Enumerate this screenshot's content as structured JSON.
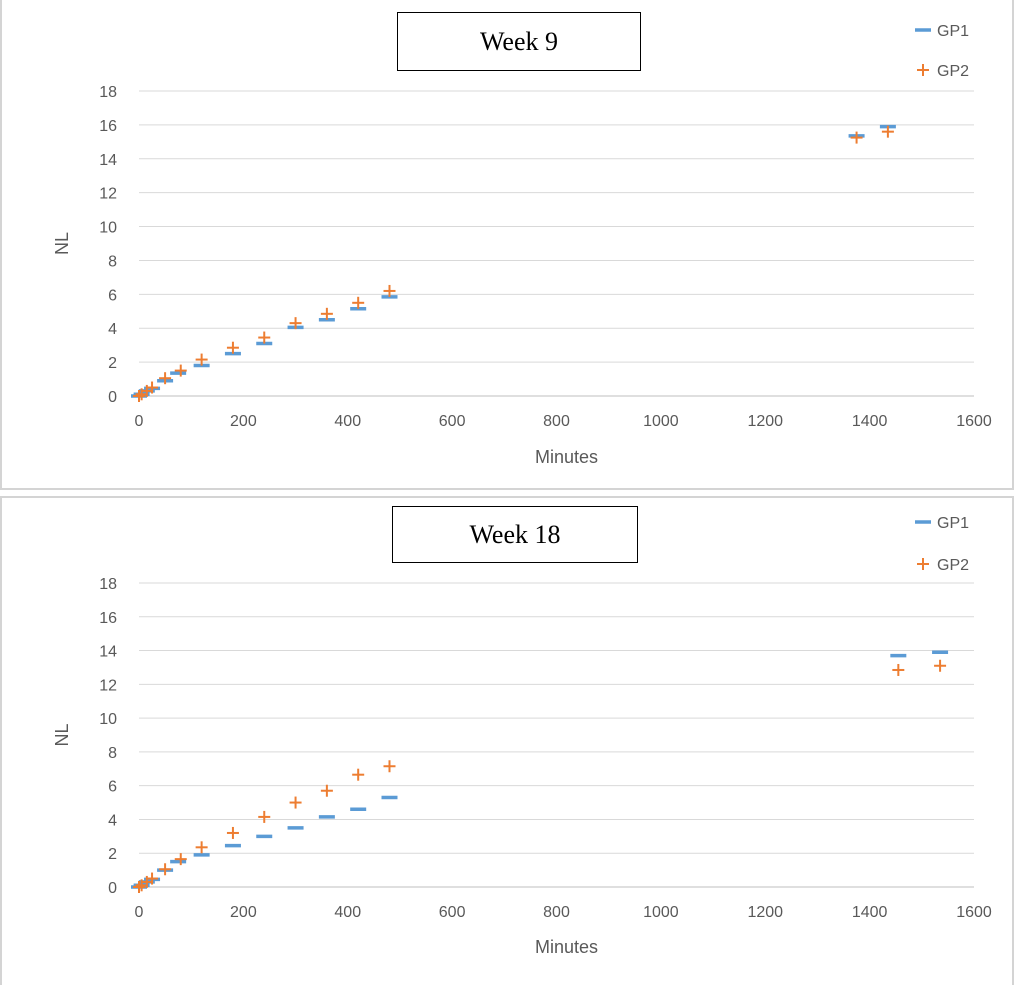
{
  "chart_data": [
    {
      "type": "scatter",
      "title": "Week 9",
      "xlabel": "Minutes",
      "ylabel": "NL",
      "xlim": [
        0,
        1600
      ],
      "ylim": [
        0,
        18
      ],
      "xticks": [
        0,
        200,
        400,
        600,
        800,
        1000,
        1200,
        1400,
        1600
      ],
      "yticks": [
        0,
        2,
        4,
        6,
        8,
        10,
        12,
        14,
        16,
        18
      ],
      "grid": true,
      "legend_position": "top-right",
      "series": [
        {
          "name": "GP1",
          "marker": "dash",
          "color": "#5b9bd5",
          "points": [
            {
              "x": 0,
              "y": 0
            },
            {
              "x": 5,
              "y": 0.1
            },
            {
              "x": 15,
              "y": 0.3
            },
            {
              "x": 25,
              "y": 0.45
            },
            {
              "x": 50,
              "y": 0.9
            },
            {
              "x": 75,
              "y": 1.35
            },
            {
              "x": 120,
              "y": 1.8
            },
            {
              "x": 180,
              "y": 2.5
            },
            {
              "x": 240,
              "y": 3.1
            },
            {
              "x": 300,
              "y": 4.05
            },
            {
              "x": 360,
              "y": 4.5
            },
            {
              "x": 420,
              "y": 5.15
            },
            {
              "x": 480,
              "y": 5.85
            },
            {
              "x": 1375,
              "y": 15.35
            },
            {
              "x": 1435,
              "y": 15.9
            }
          ]
        },
        {
          "name": "GP2",
          "marker": "plus",
          "color": "#ed7d31",
          "points": [
            {
              "x": 0,
              "y": 0
            },
            {
              "x": 5,
              "y": 0.1
            },
            {
              "x": 15,
              "y": 0.3
            },
            {
              "x": 25,
              "y": 0.5
            },
            {
              "x": 50,
              "y": 1.05
            },
            {
              "x": 80,
              "y": 1.5
            },
            {
              "x": 120,
              "y": 2.15
            },
            {
              "x": 180,
              "y": 2.85
            },
            {
              "x": 240,
              "y": 3.45
            },
            {
              "x": 300,
              "y": 4.3
            },
            {
              "x": 360,
              "y": 4.85
            },
            {
              "x": 420,
              "y": 5.5
            },
            {
              "x": 480,
              "y": 6.2
            },
            {
              "x": 1375,
              "y": 15.25
            },
            {
              "x": 1435,
              "y": 15.6
            }
          ]
        }
      ]
    },
    {
      "type": "scatter",
      "title": "Week 18",
      "xlabel": "Minutes",
      "ylabel": "NL",
      "xlim": [
        0,
        1600
      ],
      "ylim": [
        0,
        18
      ],
      "xticks": [
        0,
        200,
        400,
        600,
        800,
        1000,
        1200,
        1400,
        1600
      ],
      "yticks": [
        0,
        2,
        4,
        6,
        8,
        10,
        12,
        14,
        16,
        18
      ],
      "grid": true,
      "legend_position": "top-right",
      "series": [
        {
          "name": "GP1",
          "marker": "dash",
          "color": "#5b9bd5",
          "points": [
            {
              "x": 0,
              "y": 0
            },
            {
              "x": 5,
              "y": 0.1
            },
            {
              "x": 15,
              "y": 0.3
            },
            {
              "x": 25,
              "y": 0.45
            },
            {
              "x": 50,
              "y": 1.0
            },
            {
              "x": 75,
              "y": 1.5
            },
            {
              "x": 120,
              "y": 1.9
            },
            {
              "x": 180,
              "y": 2.45
            },
            {
              "x": 240,
              "y": 3.0
            },
            {
              "x": 300,
              "y": 3.5
            },
            {
              "x": 360,
              "y": 4.15
            },
            {
              "x": 420,
              "y": 4.6
            },
            {
              "x": 480,
              "y": 5.3
            },
            {
              "x": 1455,
              "y": 13.7
            },
            {
              "x": 1535,
              "y": 13.9
            }
          ]
        },
        {
          "name": "GP2",
          "marker": "plus",
          "color": "#ed7d31",
          "points": [
            {
              "x": 0,
              "y": 0
            },
            {
              "x": 5,
              "y": 0.1
            },
            {
              "x": 15,
              "y": 0.3
            },
            {
              "x": 25,
              "y": 0.5
            },
            {
              "x": 50,
              "y": 1.05
            },
            {
              "x": 80,
              "y": 1.65
            },
            {
              "x": 120,
              "y": 2.35
            },
            {
              "x": 180,
              "y": 3.2
            },
            {
              "x": 240,
              "y": 4.15
            },
            {
              "x": 300,
              "y": 5.0
            },
            {
              "x": 360,
              "y": 5.7
            },
            {
              "x": 420,
              "y": 6.65
            },
            {
              "x": 480,
              "y": 7.15
            },
            {
              "x": 1455,
              "y": 12.85
            },
            {
              "x": 1535,
              "y": 13.1
            }
          ]
        }
      ]
    }
  ]
}
